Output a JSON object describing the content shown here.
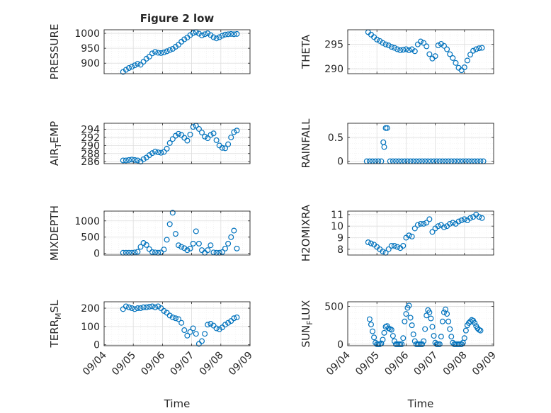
{
  "figure": {
    "title": "Figure 2 low",
    "colors": {
      "marker": "#0072BD",
      "axis": "#262626",
      "grid": "#dedede",
      "minor_grid": "#ebebeb"
    }
  },
  "chart_data": [
    {
      "id": "pressure",
      "type": "scatter",
      "ylabel": "PRESSURE",
      "xlim": [
        "09/04",
        "09/09"
      ],
      "ylim": [
        865,
        1012
      ],
      "yticks": [
        900,
        950,
        1000
      ],
      "yticklabels": [
        "900",
        "950",
        "1000"
      ],
      "x": [
        4.65,
        4.75,
        4.85,
        4.95,
        5.05,
        5.15,
        5.25,
        5.35,
        5.45,
        5.55,
        5.65,
        5.75,
        5.85,
        5.95,
        6.05,
        6.15,
        6.25,
        6.35,
        6.45,
        6.55,
        6.65,
        6.75,
        6.85,
        6.95,
        7.05,
        7.15,
        7.25,
        7.35,
        7.45,
        7.55,
        7.65,
        7.75,
        7.85,
        7.95,
        8.05,
        8.15,
        8.25,
        8.35,
        8.45,
        8.55
      ],
      "y": [
        871,
        878,
        884,
        888,
        893,
        898,
        895,
        905,
        915,
        922,
        933,
        938,
        935,
        934,
        936,
        940,
        944,
        948,
        955,
        962,
        972,
        980,
        986,
        994,
        1001,
        1004,
        999,
        993,
        997,
        1000,
        994,
        987,
        983,
        987,
        992,
        996,
        997,
        998,
        997,
        998
      ]
    },
    {
      "id": "theta",
      "type": "scatter",
      "ylabel": "THETA",
      "xlim": [
        "09/04",
        "09/09"
      ],
      "ylim": [
        289,
        298
      ],
      "yticks": [
        290,
        295
      ],
      "yticklabels": [
        "290",
        "295"
      ],
      "x": [
        4.7,
        4.8,
        4.9,
        5.0,
        5.1,
        5.2,
        5.3,
        5.4,
        5.5,
        5.6,
        5.7,
        5.8,
        5.9,
        6.0,
        6.1,
        6.2,
        6.3,
        6.4,
        6.5,
        6.6,
        6.7,
        6.8,
        6.9,
        7.0,
        7.1,
        7.2,
        7.3,
        7.4,
        7.5,
        7.6,
        7.7,
        7.8,
        7.9,
        8.0,
        8.1,
        8.2,
        8.3,
        8.4,
        8.5,
        8.6
      ],
      "y": [
        297.5,
        297,
        296.5,
        296,
        295.7,
        295.3,
        295,
        294.8,
        294.5,
        294.3,
        294,
        293.8,
        293.9,
        294,
        293.8,
        294,
        293.6,
        295,
        295.6,
        295.3,
        294.6,
        293,
        292.1,
        292.6,
        294.8,
        295.1,
        294.7,
        294,
        293,
        292.2,
        291.2,
        290.2,
        289.7,
        290.3,
        291.7,
        292.9,
        293.7,
        294,
        294.2,
        294.3
      ]
    },
    {
      "id": "air_temp",
      "type": "scatter",
      "ylabel": "AIR_TEMP",
      "xlim": [
        "09/04",
        "09/09"
      ],
      "ylim": [
        285.5,
        295.5
      ],
      "yticks": [
        286,
        288,
        290,
        292,
        294
      ],
      "yticklabels": [
        "286",
        "288",
        "290",
        "292",
        "294"
      ],
      "x": [
        4.65,
        4.75,
        4.85,
        4.95,
        5.05,
        5.15,
        5.25,
        5.35,
        5.45,
        5.55,
        5.65,
        5.75,
        5.85,
        5.95,
        6.05,
        6.15,
        6.25,
        6.35,
        6.45,
        6.55,
        6.65,
        6.75,
        6.85,
        6.95,
        7.05,
        7.15,
        7.25,
        7.35,
        7.45,
        7.55,
        7.65,
        7.75,
        7.85,
        7.95,
        8.05,
        8.15,
        8.25,
        8.35,
        8.45,
        8.55
      ],
      "y": [
        286.3,
        286.3,
        286.4,
        286.5,
        286.4,
        286.3,
        286,
        286.6,
        287,
        287.6,
        288.1,
        288.5,
        288.3,
        288.2,
        288.4,
        289.2,
        290.6,
        291.6,
        292.4,
        292.9,
        292.6,
        291.9,
        291.2,
        292.7,
        294.6,
        294.9,
        294.1,
        293.2,
        292.2,
        291.8,
        292.6,
        293,
        291.3,
        290,
        289.4,
        289.3,
        290.3,
        292,
        293.3,
        293.7
      ]
    },
    {
      "id": "rainfall",
      "type": "scatter",
      "ylabel": "RAINFALL",
      "xlim": [
        "09/04",
        "09/09"
      ],
      "ylim": [
        -0.05,
        0.8
      ],
      "yticks": [
        0,
        0.5
      ],
      "yticklabels": [
        "0",
        "0.5"
      ],
      "x": [
        4.65,
        4.75,
        4.85,
        4.95,
        5.05,
        5.15,
        5.22,
        5.25,
        5.3,
        5.35,
        5.45,
        5.55,
        5.65,
        5.75,
        5.85,
        5.95,
        6.05,
        6.15,
        6.25,
        6.35,
        6.45,
        6.55,
        6.65,
        6.75,
        6.85,
        6.95,
        7.05,
        7.15,
        7.25,
        7.35,
        7.45,
        7.55,
        7.65,
        7.75,
        7.85,
        7.95,
        8.05,
        8.15,
        8.25,
        8.35,
        8.45,
        8.55,
        8.65
      ],
      "y": [
        0,
        0,
        0,
        0,
        0,
        0,
        0.4,
        0.3,
        0.7,
        0.7,
        0,
        0,
        0,
        0,
        0,
        0,
        0,
        0,
        0,
        0,
        0,
        0,
        0,
        0,
        0,
        0,
        0,
        0,
        0,
        0,
        0,
        0,
        0,
        0,
        0,
        0,
        0,
        0,
        0,
        0,
        0,
        0,
        0
      ]
    },
    {
      "id": "mixdepth",
      "type": "scatter",
      "ylabel": "MIXDEPTH",
      "xlim": [
        "09/04",
        "09/09"
      ],
      "ylim": [
        -50,
        1300
      ],
      "yticks": [
        0,
        500,
        1000
      ],
      "yticklabels": [
        "0",
        "500",
        "1000"
      ],
      "x": [
        4.65,
        4.75,
        4.85,
        4.95,
        5.05,
        5.15,
        5.25,
        5.35,
        5.45,
        5.55,
        5.65,
        5.75,
        5.85,
        5.95,
        6.05,
        6.15,
        6.25,
        6.35,
        6.45,
        6.55,
        6.65,
        6.75,
        6.85,
        6.95,
        7.05,
        7.15,
        7.25,
        7.35,
        7.45,
        7.55,
        7.65,
        7.75,
        7.85,
        7.95,
        8.05,
        8.15,
        8.25,
        8.35,
        8.45,
        8.55
      ],
      "y": [
        20,
        20,
        20,
        20,
        30,
        50,
        200,
        320,
        260,
        130,
        40,
        30,
        20,
        30,
        120,
        420,
        900,
        1250,
        600,
        250,
        200,
        160,
        100,
        150,
        300,
        680,
        300,
        100,
        20,
        100,
        250,
        30,
        20,
        20,
        40,
        150,
        300,
        500,
        700,
        150
      ]
    },
    {
      "id": "h2omixra",
      "type": "scatter",
      "ylabel": "H2OMIXRA",
      "xlim": [
        "09/04",
        "09/09"
      ],
      "ylim": [
        7.5,
        11.3
      ],
      "yticks": [
        8,
        9,
        10,
        11
      ],
      "yticklabels": [
        "8",
        "9",
        "10",
        "11"
      ],
      "x": [
        4.7,
        4.8,
        4.9,
        5.0,
        5.1,
        5.2,
        5.3,
        5.4,
        5.5,
        5.6,
        5.7,
        5.8,
        5.9,
        6.0,
        6.1,
        6.2,
        6.3,
        6.4,
        6.5,
        6.6,
        6.7,
        6.8,
        6.9,
        7.0,
        7.1,
        7.2,
        7.3,
        7.4,
        7.5,
        7.6,
        7.7,
        7.8,
        7.9,
        8.0,
        8.1,
        8.2,
        8.3,
        8.4,
        8.5,
        8.6
      ],
      "y": [
        8.6,
        8.5,
        8.4,
        8.2,
        8.0,
        7.8,
        7.7,
        8.0,
        8.3,
        8.3,
        8.2,
        8.1,
        8.3,
        9.0,
        9.2,
        9.1,
        9.8,
        10.1,
        10.2,
        10.2,
        10.3,
        10.6,
        9.5,
        9.8,
        10.0,
        10.1,
        9.9,
        10.0,
        10.2,
        10.3,
        10.2,
        10.4,
        10.5,
        10.6,
        10.5,
        10.7,
        10.8,
        11.0,
        10.8,
        10.7
      ]
    },
    {
      "id": "terr_msl",
      "type": "scatter",
      "ylabel": "TERR_MSL",
      "xlim": [
        "09/04",
        "09/09"
      ],
      "ylim": [
        -5,
        235
      ],
      "yticks": [
        0,
        100,
        200
      ],
      "yticklabels": [
        "0",
        "100",
        "200"
      ],
      "x": [
        4.65,
        4.75,
        4.85,
        4.95,
        5.05,
        5.15,
        5.25,
        5.35,
        5.45,
        5.55,
        5.65,
        5.75,
        5.85,
        5.95,
        6.05,
        6.15,
        6.25,
        6.35,
        6.45,
        6.55,
        6.65,
        6.75,
        6.85,
        6.95,
        7.05,
        7.15,
        7.25,
        7.35,
        7.45,
        7.55,
        7.65,
        7.75,
        7.85,
        7.95,
        8.05,
        8.15,
        8.25,
        8.35,
        8.45,
        8.55
      ],
      "y": [
        195,
        210,
        205,
        200,
        195,
        200,
        200,
        205,
        205,
        208,
        210,
        205,
        210,
        200,
        185,
        175,
        160,
        150,
        145,
        140,
        120,
        80,
        50,
        70,
        90,
        60,
        5,
        20,
        60,
        110,
        115,
        105,
        90,
        85,
        95,
        110,
        120,
        130,
        145,
        150
      ]
    },
    {
      "id": "sun_flux",
      "type": "scatter",
      "ylabel": "SUN_FLUX",
      "xlim": [
        "09/04",
        "09/09"
      ],
      "ylim": [
        -20,
        560
      ],
      "yticks": [
        0,
        500
      ],
      "yticklabels": [
        "0",
        "500"
      ],
      "x": [
        4.75,
        4.8,
        4.85,
        4.9,
        4.95,
        5.0,
        5.05,
        5.1,
        5.15,
        5.2,
        5.25,
        5.3,
        5.35,
        5.4,
        5.45,
        5.5,
        5.55,
        5.6,
        5.65,
        5.7,
        5.75,
        5.8,
        5.85,
        5.9,
        5.95,
        6.0,
        6.05,
        6.1,
        6.15,
        6.2,
        6.25,
        6.3,
        6.35,
        6.4,
        6.45,
        6.5,
        6.55,
        6.6,
        6.65,
        6.7,
        6.75,
        6.8,
        6.85,
        6.9,
        6.95,
        7.0,
        7.05,
        7.1,
        7.15,
        7.2,
        7.25,
        7.3,
        7.35,
        7.4,
        7.45,
        7.5,
        7.55,
        7.6,
        7.65,
        7.7,
        7.75,
        7.8,
        7.85,
        7.9,
        7.95,
        8.0,
        8.05,
        8.1,
        8.15,
        8.2,
        8.25,
        8.3,
        8.35,
        8.4,
        8.45,
        8.5,
        8.55
      ],
      "y": [
        330,
        260,
        170,
        90,
        20,
        0,
        0,
        0,
        10,
        60,
        150,
        230,
        240,
        210,
        200,
        190,
        110,
        40,
        0,
        0,
        0,
        0,
        0,
        80,
        300,
        400,
        480,
        510,
        350,
        250,
        130,
        40,
        0,
        0,
        0,
        0,
        0,
        40,
        200,
        380,
        450,
        420,
        340,
        230,
        110,
        20,
        0,
        0,
        0,
        100,
        300,
        420,
        460,
        400,
        300,
        200,
        100,
        20,
        0,
        0,
        0,
        0,
        0,
        0,
        20,
        80,
        180,
        250,
        280,
        300,
        320,
        310,
        280,
        240,
        210,
        190,
        180
      ]
    }
  ],
  "xaxis": {
    "ticks": [
      4,
      5,
      6,
      7,
      8,
      9
    ],
    "ticklabels": [
      "09/04",
      "09/05",
      "09/06",
      "09/07",
      "09/08",
      "09/09"
    ],
    "label": "Time"
  }
}
